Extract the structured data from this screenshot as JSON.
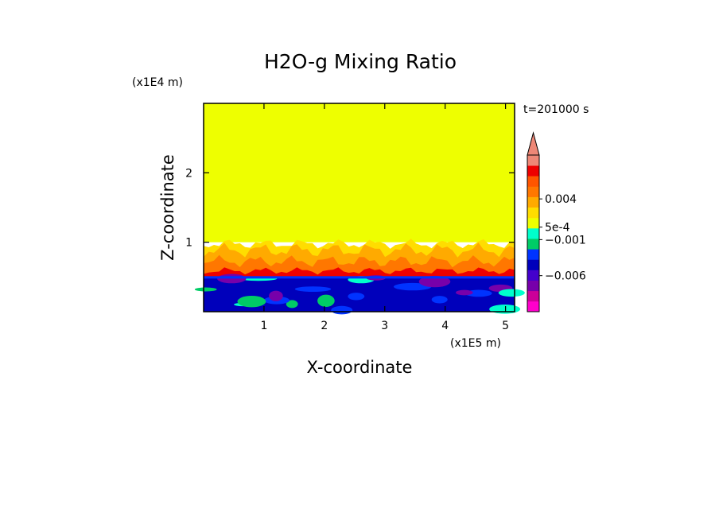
{
  "chart_data": {
    "type": "heatmap",
    "title": "H2O-g Mixing Ratio",
    "xlabel": "X-coordinate",
    "ylabel": "Z-coordinate",
    "x_unit": "(x1E5 m)",
    "y_unit": "(x1E4 m)",
    "time_label": "t=201000 s",
    "xlim": [
      0,
      5.15
    ],
    "ylim": [
      0,
      3.0
    ],
    "x_ticks": [
      1,
      2,
      3,
      4,
      5
    ],
    "y_ticks": [
      1,
      2
    ],
    "x_tick_labels": [
      "1",
      "2",
      "3",
      "4",
      "5"
    ],
    "y_tick_labels": [
      "1",
      "2"
    ],
    "grid": false,
    "colorbar": {
      "position": "right",
      "extend": "max",
      "levels": [
        {
          "color": "#ff00cc"
        },
        {
          "color": "#cc0099"
        },
        {
          "color": "#7700aa"
        },
        {
          "color": "#4400cc"
        },
        {
          "color": "#0000bb"
        },
        {
          "color": "#0033ff"
        },
        {
          "color": "#00cc66"
        },
        {
          "color": "#00ffcc"
        },
        {
          "color": "#eeff00"
        },
        {
          "color": "#ffdd00"
        },
        {
          "color": "#ffaa00"
        },
        {
          "color": "#ff7700"
        },
        {
          "color": "#ff5500"
        },
        {
          "color": "#ee0000"
        },
        {
          "color": "#ee8877"
        }
      ],
      "tick_labels": [
        {
          "text": "0.004",
          "frac": 0.72
        },
        {
          "text": "5e-4",
          "frac": 0.54
        },
        {
          "text": "−0.001",
          "frac": 0.46
        },
        {
          "text": "−0.006",
          "frac": 0.23
        }
      ]
    },
    "regions": [
      {
        "name": "upper",
        "z_range": [
          1.0,
          3.0
        ],
        "color": "#eeff00",
        "value": "~0"
      },
      {
        "name": "mixing-layer",
        "z_range": [
          0.5,
          1.0
        ],
        "colors": [
          "#ffdd00",
          "#ffaa00",
          "#ff7700",
          "#ee0000"
        ]
      },
      {
        "name": "lower-layer",
        "z_range": [
          0,
          0.5
        ],
        "colors": [
          "#0000bb",
          "#0033ff",
          "#7700aa",
          "#00cc66",
          "#00ffcc"
        ]
      }
    ]
  }
}
